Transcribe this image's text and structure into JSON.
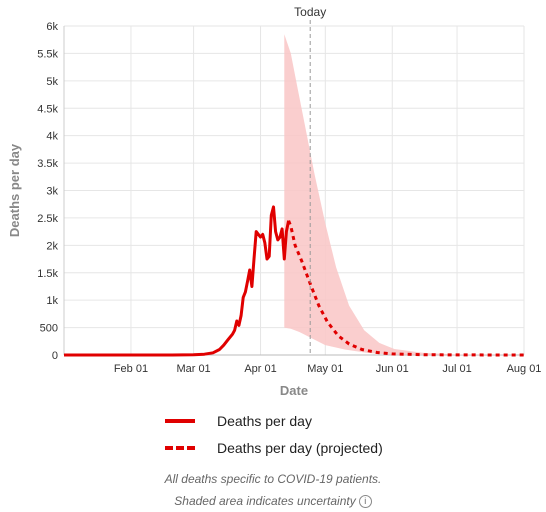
{
  "chart_data": {
    "type": "line",
    "ylabel": "Deaths per day",
    "xlabel": "Date",
    "x_ticks": [
      "Feb 01",
      "Mar 01",
      "Apr 01",
      "May 01",
      "Jun 01",
      "Jul 01",
      "Aug 01"
    ],
    "y_ticks": [
      "0",
      "500",
      "1k",
      "1.5k",
      "2k",
      "2.5k",
      "3k",
      "3.5k",
      "4k",
      "4.5k",
      "5k",
      "5.5k",
      "6k"
    ],
    "xlim": [
      "2020-01-01",
      "2020-08-01"
    ],
    "ylim": [
      0,
      6000
    ],
    "grid": true,
    "today": {
      "label": "Today",
      "date": "2020-04-24"
    },
    "series": [
      {
        "name": "Deaths per day",
        "style": "solid",
        "color": "#e00000",
        "points": [
          [
            "2020-01-01",
            0
          ],
          [
            "2020-02-01",
            0
          ],
          [
            "2020-02-20",
            0
          ],
          [
            "2020-03-01",
            5
          ],
          [
            "2020-03-06",
            15
          ],
          [
            "2020-03-10",
            40
          ],
          [
            "2020-03-13",
            100
          ],
          [
            "2020-03-15",
            180
          ],
          [
            "2020-03-17",
            280
          ],
          [
            "2020-03-19",
            380
          ],
          [
            "2020-03-20",
            450
          ],
          [
            "2020-03-21",
            620
          ],
          [
            "2020-03-22",
            540
          ],
          [
            "2020-03-23",
            720
          ],
          [
            "2020-03-24",
            1050
          ],
          [
            "2020-03-25",
            1150
          ],
          [
            "2020-03-26",
            1350
          ],
          [
            "2020-03-27",
            1550
          ],
          [
            "2020-03-28",
            1250
          ],
          [
            "2020-03-29",
            1750
          ],
          [
            "2020-03-30",
            2250
          ],
          [
            "2020-03-31",
            2200
          ],
          [
            "2020-04-01",
            2150
          ],
          [
            "2020-04-02",
            2200
          ],
          [
            "2020-04-03",
            2050
          ],
          [
            "2020-04-04",
            1750
          ],
          [
            "2020-04-05",
            1800
          ],
          [
            "2020-04-06",
            2550
          ],
          [
            "2020-04-07",
            2700
          ],
          [
            "2020-04-08",
            2250
          ],
          [
            "2020-04-09",
            2100
          ],
          [
            "2020-04-10",
            2150
          ],
          [
            "2020-04-11",
            2300
          ],
          [
            "2020-04-12",
            1750
          ],
          [
            "2020-04-13",
            2250
          ],
          [
            "2020-04-14",
            2450
          ]
        ]
      },
      {
        "name": "Deaths per day (projected)",
        "style": "dashed",
        "color": "#e00000",
        "points": [
          [
            "2020-04-14",
            2450
          ],
          [
            "2020-04-15",
            2350
          ],
          [
            "2020-04-17",
            2000
          ],
          [
            "2020-04-20",
            1720
          ],
          [
            "2020-04-24",
            1300
          ],
          [
            "2020-04-28",
            900
          ],
          [
            "2020-05-02",
            600
          ],
          [
            "2020-05-07",
            350
          ],
          [
            "2020-05-12",
            200
          ],
          [
            "2020-05-18",
            100
          ],
          [
            "2020-05-25",
            45
          ],
          [
            "2020-06-01",
            20
          ],
          [
            "2020-06-15",
            5
          ],
          [
            "2020-07-01",
            1
          ],
          [
            "2020-08-01",
            0
          ]
        ]
      }
    ],
    "uncertainty_band": {
      "color": "#f9c5c5",
      "upper": [
        [
          "2020-04-12",
          5850
        ],
        [
          "2020-04-15",
          5500
        ],
        [
          "2020-04-18",
          4900
        ],
        [
          "2020-04-22",
          4100
        ],
        [
          "2020-04-26",
          3300
        ],
        [
          "2020-05-01",
          2400
        ],
        [
          "2020-05-06",
          1600
        ],
        [
          "2020-05-12",
          900
        ],
        [
          "2020-05-19",
          450
        ],
        [
          "2020-05-26",
          220
        ],
        [
          "2020-06-02",
          110
        ],
        [
          "2020-06-15",
          40
        ],
        [
          "2020-07-01",
          10
        ],
        [
          "2020-08-01",
          0
        ]
      ],
      "lower": [
        [
          "2020-08-01",
          0
        ],
        [
          "2020-07-01",
          0
        ],
        [
          "2020-06-01",
          5
        ],
        [
          "2020-05-20",
          40
        ],
        [
          "2020-05-10",
          100
        ],
        [
          "2020-05-01",
          180
        ],
        [
          "2020-04-24",
          320
        ],
        [
          "2020-04-19",
          420
        ],
        [
          "2020-04-15",
          480
        ],
        [
          "2020-04-12",
          500
        ]
      ]
    }
  },
  "legend": {
    "items": [
      {
        "label": "Deaths per day"
      },
      {
        "label": "Deaths per day (projected)"
      }
    ]
  },
  "footnote": {
    "line1": "All deaths specific to COVID-19 patients.",
    "line2": "Shaded area indicates uncertainty",
    "info_icon": "info-circle-icon",
    "info_glyph": "i"
  }
}
